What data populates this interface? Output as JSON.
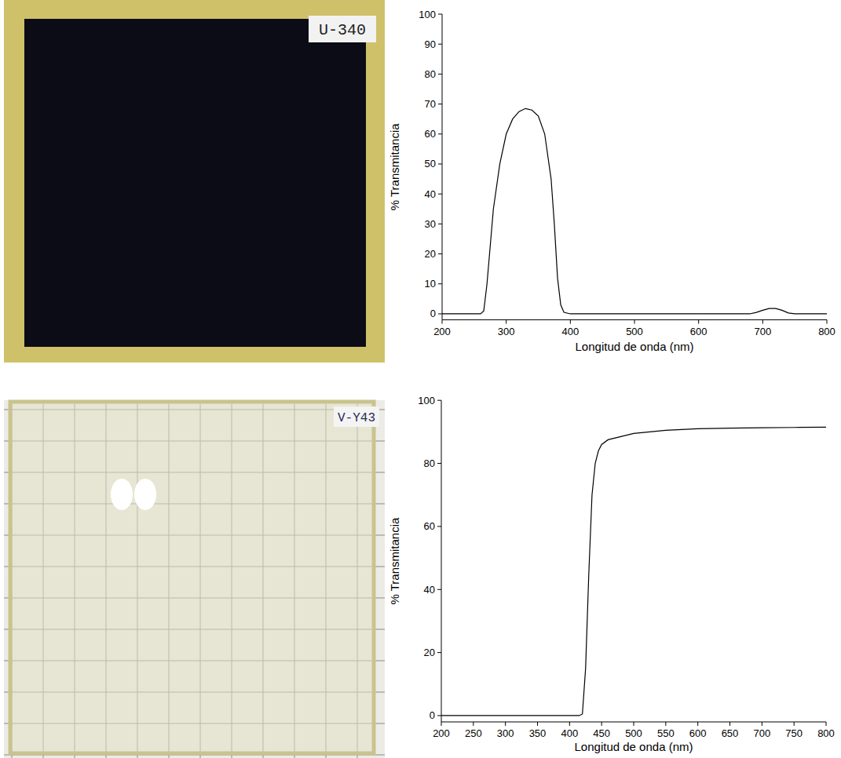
{
  "photos": [
    {
      "label": "U-340"
    },
    {
      "label": "V-Y43"
    }
  ],
  "chart_data": [
    {
      "type": "line",
      "x_label": "Longitud de onda (nm)",
      "y_label": "% Transmitancia",
      "color": "#000000",
      "grid": false,
      "xlim": [
        200,
        800
      ],
      "xticks": [
        200,
        300,
        400,
        500,
        600,
        700,
        800
      ],
      "ylim": [
        -2,
        100
      ],
      "yticks": [
        0,
        10,
        20,
        30,
        40,
        50,
        60,
        70,
        80,
        90,
        100
      ],
      "x": [
        200,
        260,
        265,
        270,
        280,
        290,
        300,
        310,
        320,
        330,
        340,
        350,
        360,
        370,
        375,
        380,
        385,
        390,
        400,
        680,
        690,
        700,
        710,
        720,
        730,
        740,
        750,
        800
      ],
      "values": [
        0,
        0,
        1,
        10,
        35,
        50,
        60,
        65,
        67.5,
        68.5,
        68,
        66,
        60,
        45,
        30,
        12,
        3,
        0.5,
        0,
        0,
        0.5,
        1.2,
        1.8,
        1.8,
        1.2,
        0.3,
        0,
        0
      ]
    },
    {
      "type": "line",
      "x_label": "Longitud de onda (nm)",
      "y_label": "% Transmitancia",
      "color": "#000000",
      "grid": false,
      "xlim": [
        200,
        800
      ],
      "xticks": [
        200,
        250,
        300,
        350,
        400,
        450,
        500,
        550,
        600,
        650,
        700,
        750,
        800
      ],
      "ylim": [
        -2,
        100
      ],
      "yticks": [
        0,
        20,
        40,
        60,
        80,
        100
      ],
      "x": [
        200,
        415,
        420,
        425,
        430,
        435,
        440,
        445,
        450,
        460,
        480,
        500,
        550,
        600,
        650,
        700,
        750,
        800
      ],
      "values": [
        0,
        0,
        0.5,
        15,
        45,
        70,
        80,
        84,
        86,
        87.5,
        88.5,
        89.5,
        90.5,
        91,
        91.2,
        91.3,
        91.4,
        91.5
      ]
    }
  ]
}
